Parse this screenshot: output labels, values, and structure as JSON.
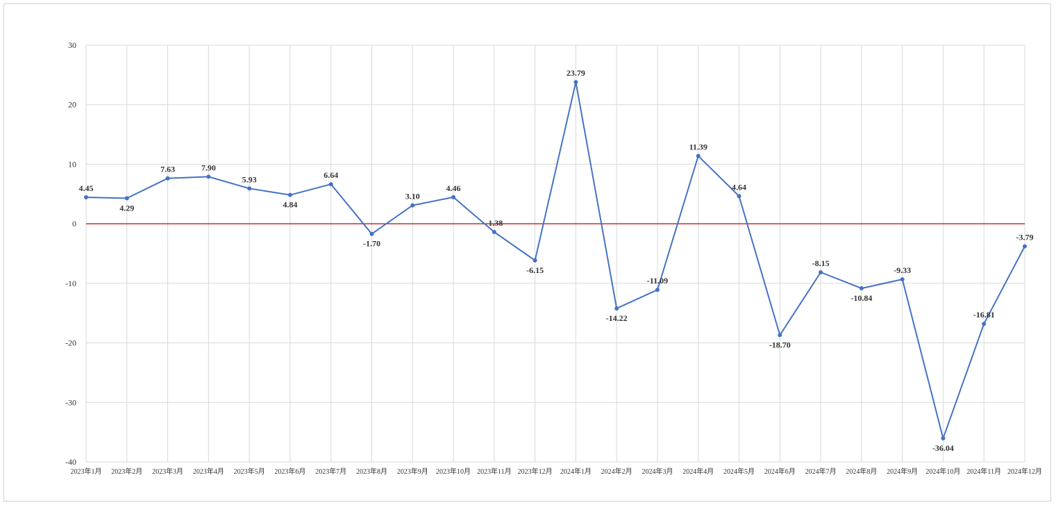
{
  "chart_data": {
    "type": "line",
    "categories": [
      "2023年1月",
      "2023年2月",
      "2023年3月",
      "2023年4月",
      "2023年5月",
      "2023年6月",
      "2023年7月",
      "2023年8月",
      "2023年9月",
      "2023年10月",
      "2023年11月",
      "2023年12月",
      "2024年1月",
      "2024年2月",
      "2024年3月",
      "2024年4月",
      "2024年5月",
      "2024年6月",
      "2024年7月",
      "2024年8月",
      "2024年9月",
      "2024年10月",
      "2024年11月",
      "2024年12月"
    ],
    "values": [
      4.45,
      4.29,
      7.63,
      7.9,
      5.93,
      4.84,
      6.64,
      -1.7,
      3.1,
      4.46,
      -1.38,
      -6.15,
      23.79,
      -14.22,
      -11.09,
      11.39,
      4.64,
      -18.7,
      -8.15,
      -10.84,
      -9.33,
      -36.04,
      -16.81,
      -3.79
    ],
    "data_labels": [
      "4.45",
      "4.29",
      "7.63",
      "7.90",
      "5.93",
      "4.84",
      "6.64",
      "-1.70",
      "3.10",
      "4.46",
      "-1.38",
      "-6.15",
      "23.79",
      "-14.22",
      "-11.09",
      "11.39",
      "4.64",
      "-18.70",
      "-8.15",
      "-10.84",
      "-9.33",
      "-36.04",
      "-16.81",
      "-3.79"
    ],
    "ylim": [
      -40,
      30
    ],
    "yticks": [
      30,
      20,
      10,
      0,
      -10,
      -20,
      -30,
      -40
    ],
    "reference_line": 0,
    "grid": true,
    "colors": {
      "series": "#4472C4",
      "reference": "#C00000",
      "grid": "#D9D9D9"
    }
  }
}
